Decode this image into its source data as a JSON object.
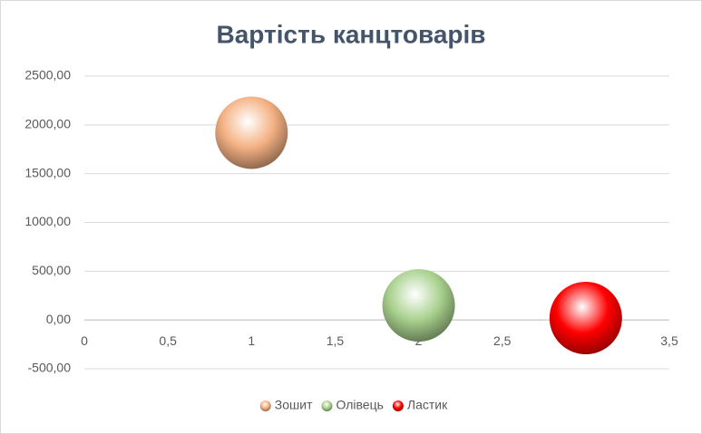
{
  "chart_data": {
    "type": "bubble",
    "title": "Вартість канцтоварів",
    "series": [
      {
        "name": "Зошит",
        "color": "#f4b183",
        "x": [
          1
        ],
        "values": [
          1920
        ],
        "sizes": [
          1
        ]
      },
      {
        "name": "Олівець",
        "color": "#a9d18e",
        "x": [
          2
        ],
        "values": [
          150
        ],
        "sizes": [
          1
        ]
      },
      {
        "name": "Ластик",
        "color": "#ff0000",
        "x": [
          3
        ],
        "values": [
          20
        ],
        "sizes": [
          1
        ]
      }
    ],
    "xlim": [
      0,
      3.5
    ],
    "xticks": [
      0,
      {
        "value": 0.5,
        "label": "0,5"
      },
      1,
      {
        "value": 1.5,
        "label": "1,5"
      },
      2,
      {
        "value": 2.5,
        "label": "2,5"
      },
      3,
      {
        "value": 3.5,
        "label": "3,5"
      }
    ],
    "ylim": [
      -500,
      2500
    ],
    "yticks": [
      {
        "value": -500,
        "label": "-500,00"
      },
      {
        "value": 0,
        "label": "0,00"
      },
      {
        "value": 500,
        "label": "500,00"
      },
      {
        "value": 1000,
        "label": "1000,00"
      },
      {
        "value": 1500,
        "label": "1500,00"
      },
      {
        "value": 2000,
        "label": "2000,00"
      },
      {
        "value": 2500,
        "label": "2500,00"
      }
    ],
    "grid": true,
    "legend": "bottom"
  }
}
